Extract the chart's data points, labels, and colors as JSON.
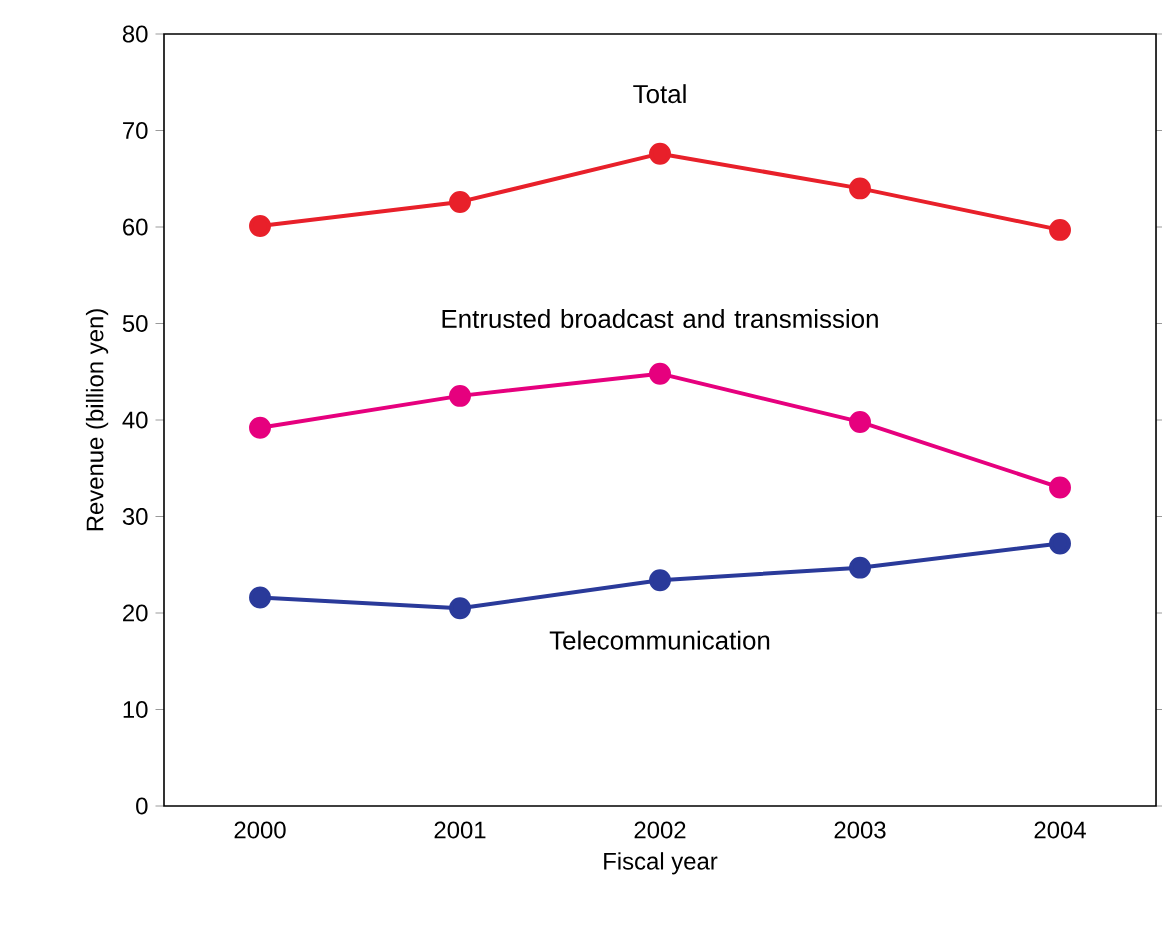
{
  "chart_data": {
    "type": "line",
    "xlabel": "Fiscal year",
    "ylabel": "Revenue (billion yen)",
    "categories": [
      "2000",
      "2001",
      "2002",
      "2003",
      "2004"
    ],
    "ylim": [
      0,
      80
    ],
    "yticks": [
      0,
      10,
      20,
      30,
      40,
      50,
      60,
      70,
      80
    ],
    "marker": "circle",
    "line_style": "solid",
    "series": [
      {
        "name": "Total",
        "color": "#e8202a",
        "values": [
          60.1,
          62.6,
          67.6,
          64.0,
          59.7
        ]
      },
      {
        "name": "Entrusted broadcast and transmission",
        "color": "#e6007e",
        "values": [
          39.2,
          42.5,
          44.8,
          39.8,
          33.0
        ]
      },
      {
        "name": "Telecommunication",
        "color": "#2a3a9a",
        "values": [
          21.6,
          20.5,
          23.4,
          24.7,
          27.2
        ]
      }
    ]
  }
}
